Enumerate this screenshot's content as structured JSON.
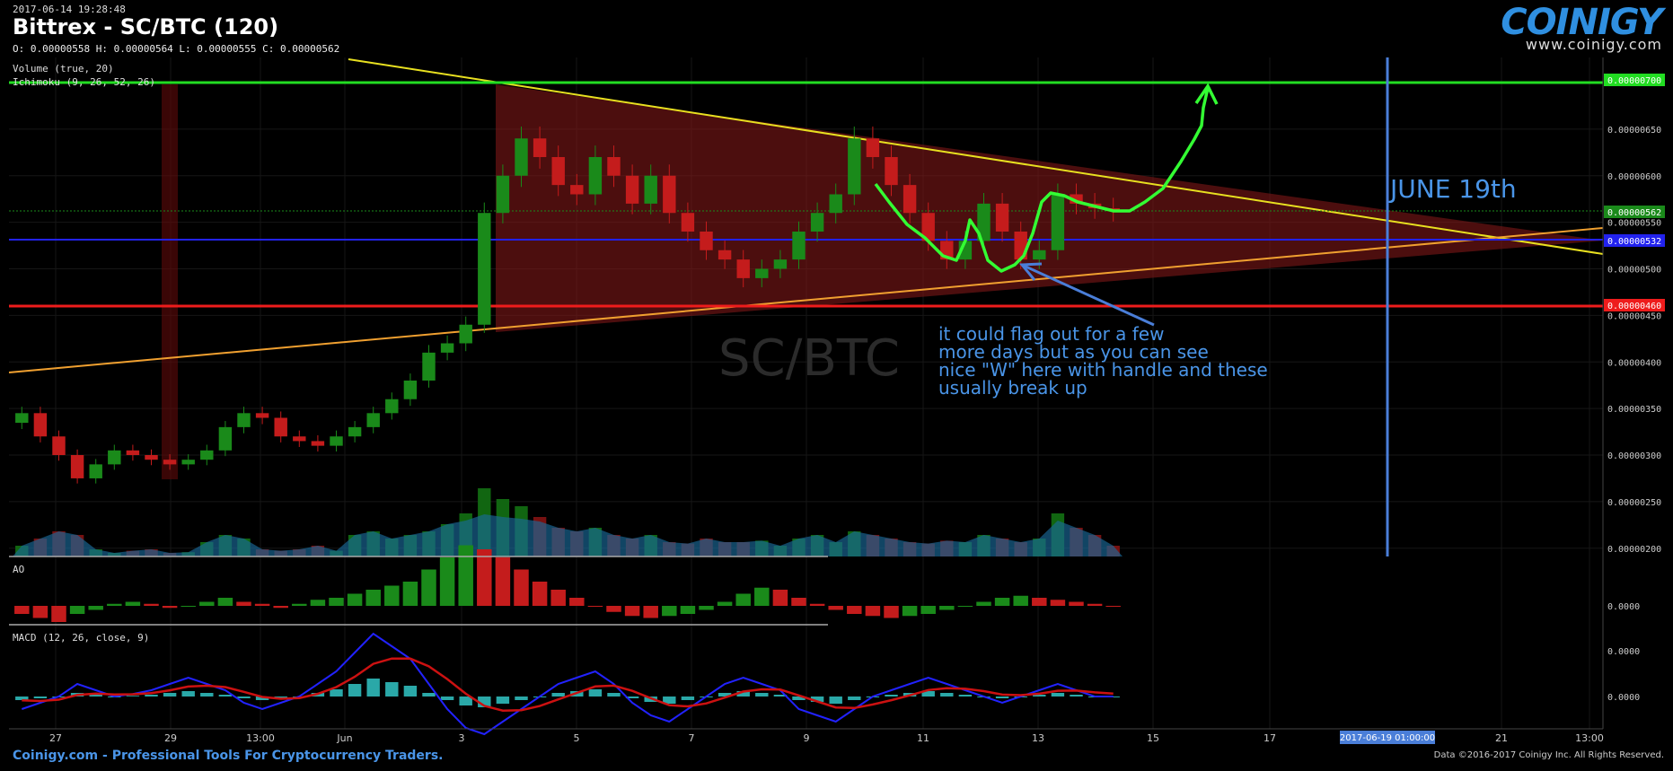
{
  "header": {
    "timestamp": "2017-06-14 19:28:48",
    "title": "Bittrex - SC/BTC (120)",
    "ohlc": "O: 0.00000558 H: 0.00000564 L: 0.00000555 C: 0.00000562",
    "volume_label": "Volume (true, 20)",
    "ichimoku_label": "Ichimoku (9, 26, 52, 26)",
    "ao_label": "AO",
    "macd_label": "MACD (12, 26, close, 9)"
  },
  "logo": {
    "brand": "COINIGY",
    "url": "www.coinigy.com"
  },
  "watermark": {
    "big": "SC/BTC",
    "small": "SC/BTC"
  },
  "annotations": {
    "note": "it could flag out for a few\nmore days but as you can see\nnice \"W\" here with handle and these\nusually break up",
    "june": "JUNE 19th"
  },
  "footer": {
    "left": "Coinigy.com - Professional Tools For Cryptocurrency Traders.",
    "right": "Data ©2016-2017 Coinigy Inc. All Rights Reserved."
  },
  "colors": {
    "up": "#1a8a1a",
    "down": "#c41c1c",
    "resistance": "#22dd22",
    "support": "#ee1c1c",
    "mid": "#2222ee",
    "trend_top": "#e8e020",
    "trend_bottom": "#f0a030",
    "annotation": "#4a95e8",
    "drawn": "#33ff33"
  },
  "chart_data": {
    "type": "candlestick",
    "title": "Bittrex - SC/BTC (120)",
    "y_price_ticks": [
      "0.00000650",
      "0.00000600",
      "0.00000550",
      "0.00000500",
      "0.00000450",
      "0.00000400",
      "0.00000350",
      "0.00000300",
      "0.00000250",
      "0.00000200"
    ],
    "ao_ticks": [
      "0.0000"
    ],
    "macd_ticks": [
      "0.0000",
      "0.0000"
    ],
    "x_ticks": [
      "27",
      "29",
      "13:00",
      "Jun",
      "3",
      "5",
      "7",
      "9",
      "11",
      "13",
      "15",
      "17",
      "21",
      "13:00"
    ],
    "current_price_tag": "0.00000562",
    "price_tags": [
      {
        "value": "0.00000700",
        "color": "#22dd22"
      },
      {
        "value": "0.00000562",
        "color": "#1a8a1a"
      },
      {
        "value": "0.00000532",
        "color": "#2222ee"
      },
      {
        "value": "0.00000460",
        "color": "#ee1c1c"
      }
    ],
    "x_highlight": "2017-06-19 01:00:00",
    "horizontal_levels": [
      {
        "name": "resistance",
        "value": 7e-06
      },
      {
        "name": "mid",
        "value": 5.32e-06
      },
      {
        "name": "support",
        "value": 4.6e-06
      }
    ],
    "close_path": [
      3.45e-06,
      3.2e-06,
      3e-06,
      2.75e-06,
      2.9e-06,
      3.05e-06,
      3e-06,
      2.95e-06,
      2.9e-06,
      2.95e-06,
      3.05e-06,
      3.3e-06,
      3.45e-06,
      3.4e-06,
      3.2e-06,
      3.15e-06,
      3.1e-06,
      3.2e-06,
      3.3e-06,
      3.45e-06,
      3.6e-06,
      3.8e-06,
      4.1e-06,
      4.2e-06,
      4.4e-06,
      5.6e-06,
      6e-06,
      6.4e-06,
      6.2e-06,
      5.9e-06,
      5.8e-06,
      6.2e-06,
      6e-06,
      5.7e-06,
      6e-06,
      5.6e-06,
      5.4e-06,
      5.2e-06,
      5.1e-06,
      4.9e-06,
      5e-06,
      5.1e-06,
      5.4e-06,
      5.6e-06,
      5.8e-06,
      6.4e-06,
      6.2e-06,
      5.9e-06,
      5.6e-06,
      5.3e-06,
      5.1e-06,
      5.3e-06,
      5.7e-06,
      5.4e-06,
      5.1e-06,
      5.2e-06,
      5.8e-06,
      5.7e-06,
      5.65e-06,
      5.62e-06
    ],
    "volume": [
      0.15,
      0.25,
      0.35,
      0.3,
      0.1,
      0.05,
      0.08,
      0.1,
      0.05,
      0.06,
      0.2,
      0.3,
      0.25,
      0.1,
      0.08,
      0.1,
      0.15,
      0.08,
      0.3,
      0.35,
      0.25,
      0.3,
      0.35,
      0.45,
      0.6,
      0.95,
      0.8,
      0.7,
      0.55,
      0.4,
      0.35,
      0.4,
      0.3,
      0.25,
      0.3,
      0.2,
      0.18,
      0.25,
      0.2,
      0.2,
      0.22,
      0.15,
      0.25,
      0.3,
      0.2,
      0.35,
      0.3,
      0.25,
      0.2,
      0.18,
      0.22,
      0.2,
      0.3,
      0.25,
      0.2,
      0.25,
      0.6,
      0.4,
      0.3,
      0.15
    ],
    "ao": [
      -0.2,
      -0.3,
      -0.4,
      -0.2,
      -0.1,
      0.05,
      0.1,
      0.05,
      -0.05,
      0.0,
      0.1,
      0.2,
      0.1,
      0.05,
      -0.05,
      0.05,
      0.15,
      0.2,
      0.3,
      0.4,
      0.5,
      0.6,
      0.9,
      1.2,
      1.5,
      1.4,
      1.2,
      0.9,
      0.6,
      0.4,
      0.2,
      0.0,
      -0.15,
      -0.25,
      -0.3,
      -0.25,
      -0.2,
      -0.1,
      0.1,
      0.3,
      0.45,
      0.4,
      0.2,
      0.05,
      -0.1,
      -0.2,
      -0.25,
      -0.3,
      -0.25,
      -0.2,
      -0.1,
      0.0,
      0.1,
      0.2,
      0.25,
      0.2,
      0.15,
      0.1,
      0.05,
      0.0
    ],
    "macd_hist": [
      -0.1,
      -0.05,
      0.0,
      0.1,
      0.05,
      0.0,
      0.02,
      0.05,
      0.1,
      0.15,
      0.1,
      0.05,
      -0.05,
      -0.1,
      -0.05,
      0.0,
      0.1,
      0.2,
      0.35,
      0.5,
      0.4,
      0.3,
      0.1,
      -0.1,
      -0.25,
      -0.3,
      -0.2,
      -0.1,
      0.0,
      0.1,
      0.15,
      0.2,
      0.1,
      -0.05,
      -0.15,
      -0.2,
      -0.1,
      0.0,
      0.1,
      0.15,
      0.1,
      0.05,
      -0.1,
      -0.15,
      -0.2,
      -0.1,
      0.0,
      0.05,
      0.1,
      0.15,
      0.1,
      0.05,
      0.0,
      -0.05,
      0.0,
      0.05,
      0.1,
      0.05,
      0.0,
      0.0
    ]
  }
}
